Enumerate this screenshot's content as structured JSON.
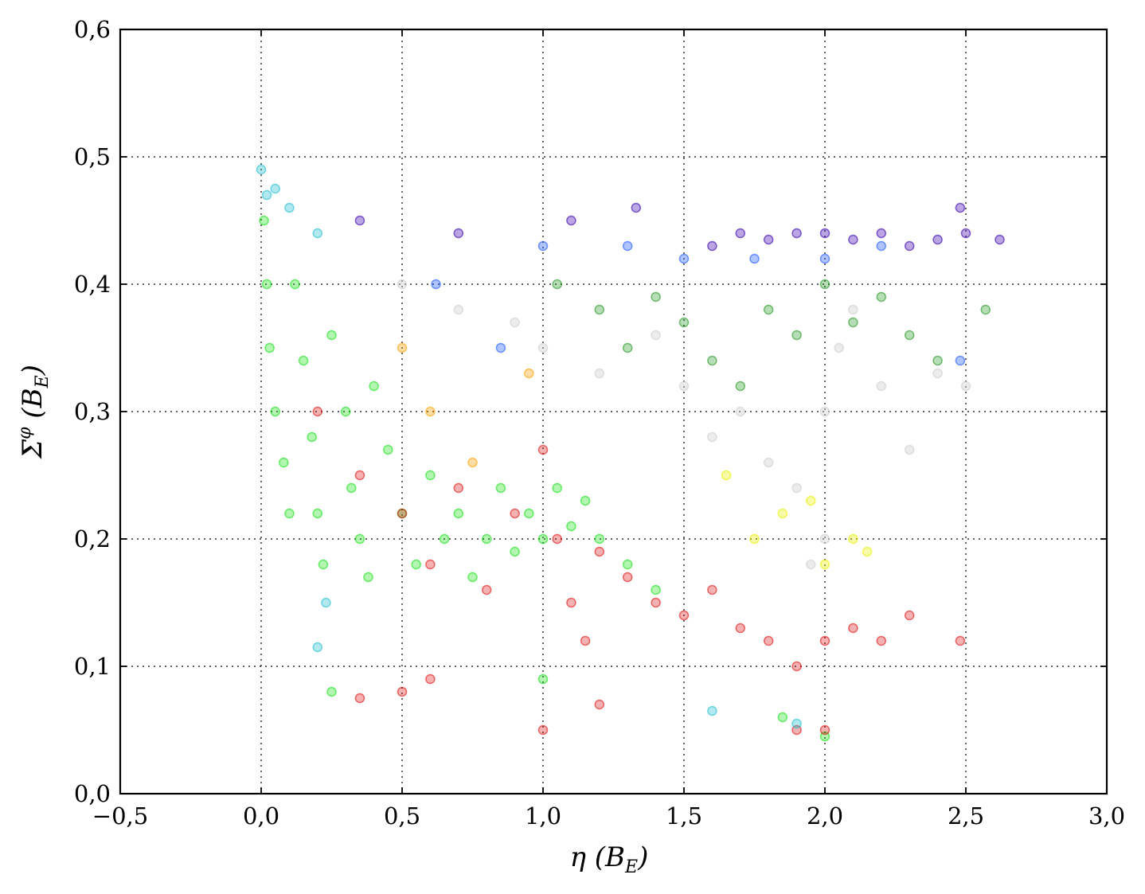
{
  "chart_data": {
    "type": "scatter",
    "xlabel": "η (B_E)",
    "ylabel": "Σ^φ (B_E)",
    "xlabel_parts": {
      "main": "η (B",
      "sub": "E",
      "end": ")"
    },
    "ylabel_parts": {
      "main": "Σ",
      "sup": "φ",
      "mid": " (B",
      "sub": "E",
      "end": ")"
    },
    "xlim": [
      -0.5,
      3.0
    ],
    "ylim": [
      0.0,
      0.6
    ],
    "grid": true,
    "x_ticks": [
      -0.5,
      0.0,
      0.5,
      1.0,
      1.5,
      2.0,
      2.5,
      3.0
    ],
    "y_ticks": [
      0.0,
      0.1,
      0.2,
      0.3,
      0.4,
      0.5,
      0.6
    ],
    "x_tick_labels": [
      "−0,5",
      "0,0",
      "0,5",
      "1,0",
      "1,5",
      "2,0",
      "2,5",
      "3,0"
    ],
    "y_tick_labels": [
      "0,0",
      "0,1",
      "0,2",
      "0,3",
      "0,4",
      "0,5",
      "0,6"
    ],
    "series": [
      {
        "color": "#00e000",
        "opacity": 0.3,
        "points": [
          [
            0.01,
            0.45
          ],
          [
            0.02,
            0.4
          ],
          [
            0.03,
            0.35
          ],
          [
            0.05,
            0.3
          ],
          [
            0.08,
            0.26
          ],
          [
            0.1,
            0.22
          ],
          [
            0.12,
            0.4
          ],
          [
            0.15,
            0.34
          ],
          [
            0.18,
            0.28
          ],
          [
            0.2,
            0.22
          ],
          [
            0.22,
            0.18
          ],
          [
            0.25,
            0.36
          ],
          [
            0.3,
            0.3
          ],
          [
            0.32,
            0.24
          ],
          [
            0.35,
            0.2
          ],
          [
            0.38,
            0.17
          ],
          [
            0.4,
            0.32
          ],
          [
            0.45,
            0.27
          ],
          [
            0.5,
            0.22
          ],
          [
            0.55,
            0.18
          ],
          [
            0.6,
            0.25
          ],
          [
            0.65,
            0.2
          ],
          [
            0.7,
            0.22
          ],
          [
            0.75,
            0.17
          ],
          [
            0.8,
            0.2
          ],
          [
            0.85,
            0.24
          ],
          [
            0.9,
            0.19
          ],
          [
            0.95,
            0.22
          ],
          [
            1.0,
            0.2
          ],
          [
            1.05,
            0.24
          ],
          [
            1.1,
            0.21
          ],
          [
            1.15,
            0.23
          ],
          [
            1.2,
            0.2
          ],
          [
            1.3,
            0.18
          ],
          [
            1.4,
            0.16
          ],
          [
            0.25,
            0.08
          ],
          [
            1.0,
            0.09
          ],
          [
            1.85,
            0.06
          ],
          [
            2.0,
            0.045
          ]
        ]
      },
      {
        "color": "#e00000",
        "opacity": 0.3,
        "points": [
          [
            0.2,
            0.3
          ],
          [
            0.35,
            0.25
          ],
          [
            0.5,
            0.22
          ],
          [
            0.6,
            0.18
          ],
          [
            0.7,
            0.24
          ],
          [
            0.8,
            0.16
          ],
          [
            0.9,
            0.22
          ],
          [
            1.0,
            0.27
          ],
          [
            1.05,
            0.2
          ],
          [
            1.1,
            0.15
          ],
          [
            1.15,
            0.12
          ],
          [
            1.2,
            0.19
          ],
          [
            1.3,
            0.17
          ],
          [
            1.4,
            0.15
          ],
          [
            1.5,
            0.14
          ],
          [
            1.6,
            0.16
          ],
          [
            1.7,
            0.13
          ],
          [
            1.8,
            0.12
          ],
          [
            1.9,
            0.1
          ],
          [
            2.0,
            0.12
          ],
          [
            2.1,
            0.13
          ],
          [
            2.2,
            0.12
          ],
          [
            2.3,
            0.14
          ],
          [
            2.48,
            0.12
          ],
          [
            0.35,
            0.075
          ],
          [
            0.5,
            0.08
          ],
          [
            0.6,
            0.09
          ],
          [
            1.0,
            0.05
          ],
          [
            1.2,
            0.07
          ],
          [
            1.9,
            0.05
          ],
          [
            2.0,
            0.05
          ]
        ]
      },
      {
        "color": "#d0d0d0",
        "opacity": 0.4,
        "points": [
          [
            0.5,
            0.4
          ],
          [
            0.7,
            0.38
          ],
          [
            0.9,
            0.37
          ],
          [
            1.0,
            0.35
          ],
          [
            1.2,
            0.33
          ],
          [
            1.4,
            0.36
          ],
          [
            1.5,
            0.32
          ],
          [
            1.6,
            0.28
          ],
          [
            1.7,
            0.3
          ],
          [
            1.8,
            0.26
          ],
          [
            1.9,
            0.24
          ],
          [
            2.0,
            0.3
          ],
          [
            2.05,
            0.35
          ],
          [
            2.1,
            0.38
          ],
          [
            2.2,
            0.32
          ],
          [
            2.3,
            0.27
          ],
          [
            2.4,
            0.33
          ],
          [
            1.95,
            0.18
          ],
          [
            2.0,
            0.2
          ],
          [
            2.5,
            0.32
          ]
        ]
      },
      {
        "color": "#109010",
        "opacity": 0.3,
        "points": [
          [
            1.05,
            0.4
          ],
          [
            1.2,
            0.38
          ],
          [
            1.3,
            0.35
          ],
          [
            1.4,
            0.39
          ],
          [
            1.5,
            0.37
          ],
          [
            1.6,
            0.34
          ],
          [
            1.7,
            0.32
          ],
          [
            1.8,
            0.38
          ],
          [
            1.9,
            0.36
          ],
          [
            2.0,
            0.4
          ],
          [
            2.1,
            0.37
          ],
          [
            2.2,
            0.39
          ],
          [
            2.3,
            0.36
          ],
          [
            2.4,
            0.34
          ],
          [
            2.57,
            0.38
          ]
        ]
      },
      {
        "color": "#3a00b0",
        "opacity": 0.35,
        "points": [
          [
            1.6,
            0.43
          ],
          [
            1.7,
            0.44
          ],
          [
            1.8,
            0.435
          ],
          [
            1.9,
            0.44
          ],
          [
            2.0,
            0.44
          ],
          [
            2.1,
            0.435
          ],
          [
            2.2,
            0.44
          ],
          [
            2.3,
            0.43
          ],
          [
            2.4,
            0.435
          ],
          [
            2.5,
            0.44
          ],
          [
            2.62,
            0.435
          ],
          [
            0.35,
            0.45
          ],
          [
            0.7,
            0.44
          ],
          [
            1.1,
            0.45
          ],
          [
            1.33,
            0.46
          ],
          [
            2.48,
            0.46
          ]
        ]
      },
      {
        "color": "#1e5aff",
        "opacity": 0.35,
        "points": [
          [
            0.62,
            0.4
          ],
          [
            0.85,
            0.35
          ],
          [
            1.0,
            0.43
          ],
          [
            1.3,
            0.43
          ],
          [
            1.5,
            0.42
          ],
          [
            1.75,
            0.42
          ],
          [
            2.0,
            0.42
          ],
          [
            2.2,
            0.43
          ],
          [
            2.48,
            0.34
          ]
        ]
      },
      {
        "color": "#20c0d0",
        "opacity": 0.35,
        "points": [
          [
            0.0,
            0.49
          ],
          [
            0.02,
            0.47
          ],
          [
            0.05,
            0.475
          ],
          [
            0.1,
            0.46
          ],
          [
            0.2,
            0.44
          ],
          [
            0.23,
            0.15
          ],
          [
            0.2,
            0.115
          ],
          [
            1.6,
            0.065
          ],
          [
            1.9,
            0.055
          ]
        ]
      },
      {
        "color": "#e8f000",
        "opacity": 0.35,
        "points": [
          [
            1.65,
            0.25
          ],
          [
            1.75,
            0.2
          ],
          [
            1.85,
            0.22
          ],
          [
            1.95,
            0.23
          ],
          [
            2.0,
            0.18
          ],
          [
            2.1,
            0.2
          ],
          [
            2.15,
            0.19
          ]
        ]
      },
      {
        "color": "#ffa000",
        "opacity": 0.35,
        "points": [
          [
            0.5,
            0.35
          ],
          [
            0.6,
            0.3
          ],
          [
            0.75,
            0.26
          ],
          [
            0.95,
            0.33
          ]
        ]
      }
    ]
  }
}
